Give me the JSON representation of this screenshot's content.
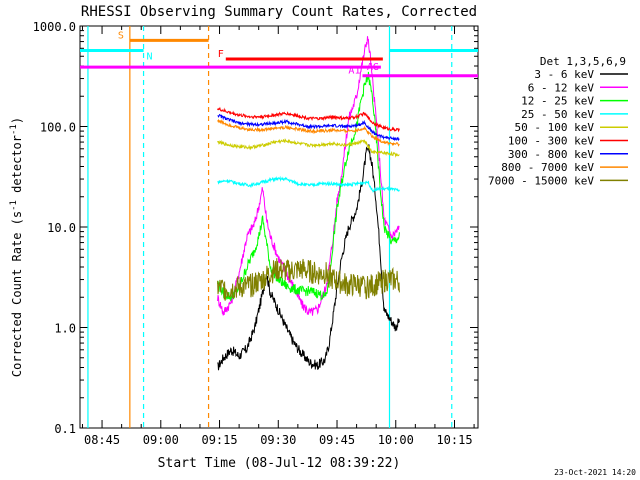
{
  "chart_data": {
    "type": "line",
    "title": "RHESSI Observing Summary Count Rates, Corrected",
    "xlabel": "Start Time (08-Jul-12 08:39:22)",
    "ylabel": "Corrected Count Rate (s⁻¹ detector⁻¹)",
    "ylabel_main": "Corrected Count Rate (s",
    "ylabel_sup1": "-1",
    "ylabel_mid": " detector",
    "ylabel_sup2": "-1",
    "ylabel_end": ")",
    "yscale": "log",
    "ylim": [
      0.1,
      1000
    ],
    "xlim_minutes": [
      39.37,
      141.0
    ],
    "x_tick_labels": [
      "08:45",
      "09:00",
      "09:15",
      "09:30",
      "09:45",
      "10:00",
      "10:15"
    ],
    "x_tick_minutes": [
      45,
      60,
      75,
      90,
      105,
      120,
      135
    ],
    "y_tick_labels": [
      "0.1",
      "1.0",
      "10.0",
      "100.0",
      "1000.0"
    ],
    "y_tick_values": [
      0.1,
      1,
      10,
      100,
      1000
    ],
    "legend_title": "Det 1,3,5,6,9",
    "legend_placement": "right",
    "footer_date": "23-Oct-2021 14:20",
    "series": [
      {
        "name": "3 - 6 keV",
        "color": "#000000",
        "points": [
          [
            74.5,
            0.4
          ],
          [
            76,
            0.5
          ],
          [
            78,
            0.6
          ],
          [
            80,
            0.52
          ],
          [
            82,
            0.62
          ],
          [
            84,
            1.0
          ],
          [
            86,
            2.2
          ],
          [
            87,
            3.4
          ],
          [
            88,
            2.2
          ],
          [
            90,
            1.5
          ],
          [
            92,
            1.0
          ],
          [
            94,
            0.7
          ],
          [
            96,
            0.55
          ],
          [
            98,
            0.45
          ],
          [
            100,
            0.42
          ],
          [
            102,
            0.48
          ],
          [
            103,
            0.7
          ],
          [
            104,
            1.3
          ],
          [
            105,
            2.5
          ],
          [
            106,
            4.5
          ],
          [
            107,
            7.0
          ],
          [
            108,
            10
          ],
          [
            110,
            15
          ],
          [
            111.5,
            30
          ],
          [
            112.5,
            55
          ],
          [
            113.2,
            60
          ],
          [
            114,
            40
          ],
          [
            115,
            18
          ],
          [
            116,
            6
          ],
          [
            117,
            1.5
          ],
          [
            120,
            1.0
          ],
          [
            121,
            1.2
          ]
        ]
      },
      {
        "name": "6 - 12 keV",
        "color": "#ff00ff",
        "points": [
          [
            74.5,
            2.0
          ],
          [
            76,
            1.4
          ],
          [
            78,
            1.8
          ],
          [
            80,
            3.5
          ],
          [
            82,
            8
          ],
          [
            84,
            11
          ],
          [
            85,
            16
          ],
          [
            86,
            24
          ],
          [
            87,
            12
          ],
          [
            88,
            8
          ],
          [
            90,
            5
          ],
          [
            92,
            3.5
          ],
          [
            94,
            2.5
          ],
          [
            96,
            1.7
          ],
          [
            98,
            1.4
          ],
          [
            100,
            1.5
          ],
          [
            102,
            2.4
          ],
          [
            103,
            4
          ],
          [
            104,
            8
          ],
          [
            105,
            18
          ],
          [
            106,
            30
          ],
          [
            107,
            60
          ],
          [
            108,
            120
          ],
          [
            110,
            200
          ],
          [
            111,
            350
          ],
          [
            112,
            550
          ],
          [
            112.8,
            780
          ],
          [
            113.5,
            500
          ],
          [
            114,
            300
          ],
          [
            115,
            120
          ],
          [
            116,
            40
          ],
          [
            117,
            12
          ],
          [
            119,
            8
          ],
          [
            121,
            10
          ]
        ]
      },
      {
        "name": "12 - 25 keV",
        "color": "#00ff00",
        "points": [
          [
            74.5,
            2.8
          ],
          [
            76,
            2.2
          ],
          [
            78,
            2.0
          ],
          [
            80,
            2.5
          ],
          [
            82,
            4
          ],
          [
            84,
            6
          ],
          [
            85,
            8
          ],
          [
            86,
            12
          ],
          [
            87,
            7
          ],
          [
            88,
            4
          ],
          [
            90,
            3
          ],
          [
            92,
            2.6
          ],
          [
            94,
            2.4
          ],
          [
            96,
            2.3
          ],
          [
            98,
            2.3
          ],
          [
            100,
            2.2
          ],
          [
            102,
            2.0
          ],
          [
            103,
            2.8
          ],
          [
            104,
            7
          ],
          [
            105,
            15
          ],
          [
            106,
            25
          ],
          [
            107,
            40
          ],
          [
            108,
            60
          ],
          [
            110,
            100
          ],
          [
            111,
            170
          ],
          [
            112,
            250
          ],
          [
            113,
            320
          ],
          [
            114,
            200
          ],
          [
            115,
            80
          ],
          [
            116,
            25
          ],
          [
            117,
            10
          ],
          [
            119,
            7
          ],
          [
            121,
            8
          ]
        ]
      },
      {
        "name": "25 - 50 keV",
        "color": "#00ffff",
        "points": [
          [
            74.5,
            28
          ],
          [
            77,
            29
          ],
          [
            80,
            27
          ],
          [
            83,
            26
          ],
          [
            86,
            28
          ],
          [
            89,
            30
          ],
          [
            92,
            30
          ],
          [
            95,
            27
          ],
          [
            98,
            26
          ],
          [
            101,
            27
          ],
          [
            104,
            27
          ],
          [
            107,
            26
          ],
          [
            110,
            27
          ],
          [
            113,
            28
          ],
          [
            114,
            23
          ],
          [
            116,
            24
          ],
          [
            118,
            24
          ],
          [
            121,
            23
          ]
        ]
      },
      {
        "name": "50 - 100 keV",
        "color": "#cccc00",
        "points": [
          [
            74.5,
            70
          ],
          [
            77,
            66
          ],
          [
            80,
            63
          ],
          [
            83,
            62
          ],
          [
            86,
            65
          ],
          [
            89,
            70
          ],
          [
            92,
            72
          ],
          [
            95,
            68
          ],
          [
            98,
            65
          ],
          [
            101,
            66
          ],
          [
            104,
            68
          ],
          [
            107,
            65
          ],
          [
            110,
            68
          ],
          [
            112,
            72
          ],
          [
            114,
            55
          ],
          [
            116,
            55
          ],
          [
            118,
            54
          ],
          [
            121,
            52
          ]
        ]
      },
      {
        "name": "100 - 300 keV",
        "color": "#ff0000",
        "points": [
          [
            74.5,
            150
          ],
          [
            77,
            140
          ],
          [
            80,
            130
          ],
          [
            83,
            125
          ],
          [
            86,
            125
          ],
          [
            89,
            130
          ],
          [
            92,
            135
          ],
          [
            95,
            128
          ],
          [
            98,
            120
          ],
          [
            101,
            120
          ],
          [
            104,
            125
          ],
          [
            107,
            120
          ],
          [
            110,
            125
          ],
          [
            112,
            135
          ],
          [
            114,
            110
          ],
          [
            116,
            100
          ],
          [
            118,
            95
          ],
          [
            121,
            92
          ]
        ]
      },
      {
        "name": "300 - 800 keV",
        "color": "#0000ff",
        "points": [
          [
            74.5,
            130
          ],
          [
            77,
            118
          ],
          [
            80,
            108
          ],
          [
            83,
            105
          ],
          [
            86,
            105
          ],
          [
            89,
            108
          ],
          [
            92,
            112
          ],
          [
            95,
            105
          ],
          [
            98,
            100
          ],
          [
            101,
            100
          ],
          [
            104,
            102
          ],
          [
            107,
            100
          ],
          [
            110,
            102
          ],
          [
            112,
            110
          ],
          [
            114,
            88
          ],
          [
            116,
            80
          ],
          [
            118,
            77
          ],
          [
            121,
            75
          ]
        ]
      },
      {
        "name": "800 - 7000 keV",
        "color": "#ff8800",
        "points": [
          [
            74.5,
            115
          ],
          [
            77,
            105
          ],
          [
            80,
            97
          ],
          [
            83,
            93
          ],
          [
            86,
            93
          ],
          [
            89,
            96
          ],
          [
            92,
            98
          ],
          [
            95,
            94
          ],
          [
            98,
            90
          ],
          [
            101,
            90
          ],
          [
            104,
            92
          ],
          [
            107,
            90
          ],
          [
            110,
            92
          ],
          [
            112,
            96
          ],
          [
            114,
            80
          ],
          [
            116,
            72
          ],
          [
            118,
            68
          ],
          [
            121,
            66
          ]
        ]
      },
      {
        "name": "7000 - 15000 keV",
        "color": "#808000",
        "points": [
          [
            74.5,
            2.5
          ],
          [
            77,
            2.4
          ],
          [
            80,
            2.5
          ],
          [
            83,
            2.6
          ],
          [
            86,
            3.0
          ],
          [
            88,
            3.5
          ],
          [
            90,
            3.8
          ],
          [
            92,
            3.6
          ],
          [
            94,
            3.7
          ],
          [
            96,
            3.8
          ],
          [
            98,
            3.6
          ],
          [
            100,
            3.4
          ],
          [
            102,
            3.5
          ],
          [
            104,
            3.0
          ],
          [
            106,
            2.8
          ],
          [
            108,
            2.6
          ],
          [
            110,
            2.7
          ],
          [
            112,
            2.5
          ],
          [
            114,
            2.6
          ],
          [
            116,
            2.8
          ],
          [
            118,
            3.0
          ],
          [
            121,
            2.9
          ]
        ]
      }
    ],
    "vertical_markers": [
      {
        "minute": 41.4,
        "color": "#00ffff",
        "dash": "solid"
      },
      {
        "minute": 52.1,
        "color": "#ff8800",
        "dash": "solid"
      },
      {
        "minute": 55.6,
        "color": "#00ffff",
        "dash": "dashed"
      },
      {
        "minute": 72.2,
        "color": "#ff8800",
        "dash": "dashed"
      },
      {
        "minute": 118.4,
        "color": "#00ffff",
        "dash": "solid"
      },
      {
        "minute": 134.3,
        "color": "#00ffff",
        "dash": "dashed"
      }
    ],
    "flag_bars": [
      {
        "label": "S",
        "color": "#ff8800",
        "start": 52.1,
        "end": 72.2,
        "y": 720
      },
      {
        "label": "N",
        "color": "#00ffff",
        "start": 39.37,
        "end": 55.6,
        "y": 570
      },
      {
        "label": "",
        "color": "#00ffff",
        "start": 118.4,
        "end": 141.0,
        "y": 570
      },
      {
        "label": "F",
        "color": "#ff0000",
        "start": 76.6,
        "end": 116.7,
        "y": 470
      },
      {
        "label": "AG",
        "color": "#ff00ff",
        "start": 39.37,
        "end": 116.2,
        "y": 390
      },
      {
        "label": "A1",
        "color": "#ff00ff",
        "start": 111.5,
        "end": 141.0,
        "y": 320
      }
    ]
  }
}
